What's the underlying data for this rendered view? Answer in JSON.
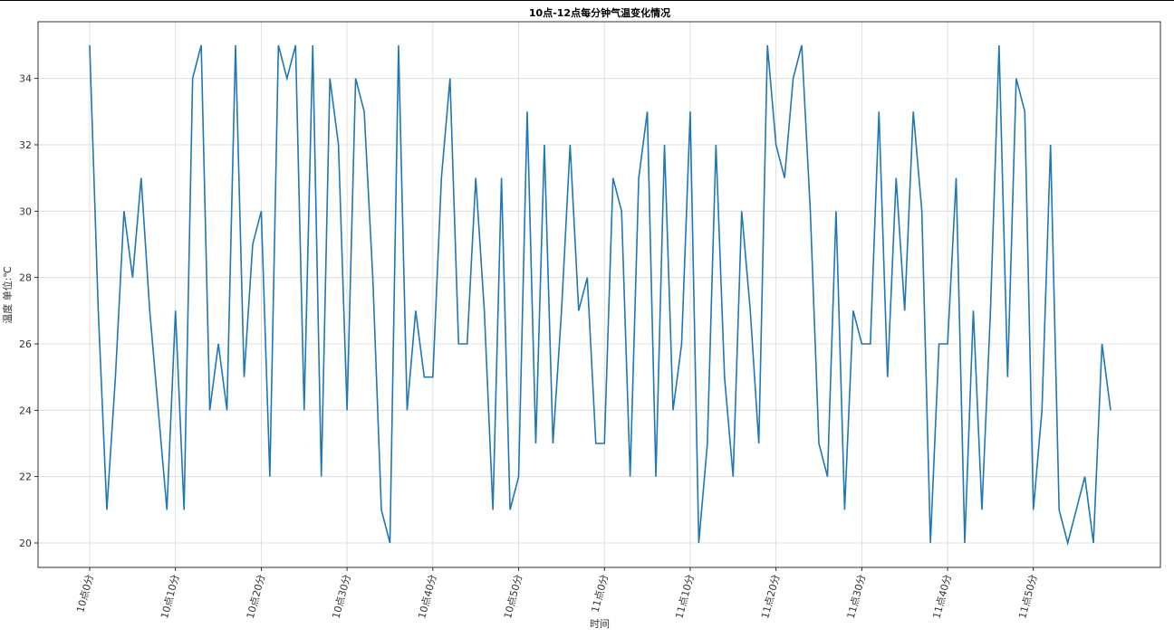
{
  "chart_data": {
    "type": "line",
    "title": "10点-12点每分钟气温变化情况",
    "xlabel": "时间",
    "ylabel": "温度 单位:℃",
    "grid": true,
    "xlim": [
      0,
      119
    ],
    "ylim": [
      20,
      35
    ],
    "yticks": [
      20,
      22,
      24,
      26,
      28,
      30,
      32,
      34
    ],
    "xtick_positions": [
      0,
      10,
      20,
      30,
      40,
      50,
      60,
      70,
      80,
      90,
      100,
      110
    ],
    "xtick_labels": [
      "10点0分",
      "10点10分",
      "10点20分",
      "10点30分",
      "10点40分",
      "10点50分",
      "11点0分",
      "11点10分",
      "11点20分",
      "11点30分",
      "11点40分",
      "11点50分"
    ],
    "series": [
      {
        "color": "#1f77b4",
        "x": [
          0,
          1,
          2,
          3,
          4,
          5,
          6,
          7,
          8,
          9,
          10,
          11,
          12,
          13,
          14,
          15,
          16,
          17,
          18,
          19,
          20,
          21,
          22,
          23,
          24,
          25,
          26,
          27,
          28,
          29,
          30,
          31,
          32,
          33,
          34,
          35,
          36,
          37,
          38,
          39,
          40,
          41,
          42,
          43,
          44,
          45,
          46,
          47,
          48,
          49,
          50,
          51,
          52,
          53,
          54,
          55,
          56,
          57,
          58,
          59,
          60,
          61,
          62,
          63,
          64,
          65,
          66,
          67,
          68,
          69,
          70,
          71,
          72,
          73,
          74,
          75,
          76,
          77,
          78,
          79,
          80,
          81,
          82,
          83,
          84,
          85,
          86,
          87,
          88,
          89,
          90,
          91,
          92,
          93,
          94,
          95,
          96,
          97,
          98,
          99,
          100,
          101,
          102,
          103,
          104,
          105,
          106,
          107,
          108,
          109,
          110,
          111,
          112,
          113,
          114,
          115,
          116,
          117,
          118,
          119
        ],
        "values": [
          35,
          27,
          21,
          25,
          30,
          28,
          31,
          27,
          24,
          21,
          27,
          21,
          34,
          35,
          24,
          26,
          24,
          35,
          25,
          29,
          30,
          22,
          35,
          34,
          35,
          24,
          35,
          22,
          34,
          32,
          24,
          34,
          33,
          28,
          21,
          20,
          35,
          24,
          27,
          25,
          25,
          31,
          34,
          26,
          26,
          31,
          27,
          21,
          31,
          21,
          22,
          33,
          23,
          32,
          23,
          27,
          32,
          27,
          28,
          23,
          23,
          31,
          30,
          22,
          31,
          33,
          22,
          32,
          24,
          26,
          33,
          20,
          23,
          32,
          25,
          22,
          30,
          27,
          23,
          35,
          32,
          31,
          34,
          35,
          30,
          23,
          22,
          30,
          21,
          27,
          26,
          26,
          33,
          25,
          31,
          27,
          33,
          30,
          20,
          26,
          26,
          31,
          20,
          27,
          21,
          27,
          35,
          25,
          34,
          33,
          21,
          24,
          32,
          21,
          20,
          21,
          22,
          20,
          26,
          24
        ]
      }
    ]
  }
}
